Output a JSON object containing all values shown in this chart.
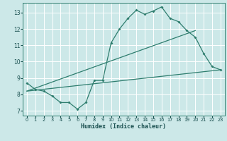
{
  "xlabel": "Humidex (Indice chaleur)",
  "bg_color": "#cce8e8",
  "grid_color": "#ffffff",
  "line_color": "#2e7d6e",
  "xlim": [
    -0.5,
    23.5
  ],
  "ylim": [
    6.7,
    13.6
  ],
  "xticks": [
    0,
    1,
    2,
    3,
    4,
    5,
    6,
    7,
    8,
    9,
    10,
    11,
    12,
    13,
    14,
    15,
    16,
    17,
    18,
    19,
    20,
    21,
    22,
    23
  ],
  "yticks": [
    7,
    8,
    9,
    10,
    11,
    12,
    13
  ],
  "line1_x": [
    0,
    1,
    2,
    3,
    4,
    5,
    6,
    7,
    8,
    9,
    10,
    11,
    12,
    13,
    14,
    15,
    16,
    17,
    18,
    19,
    20,
    21,
    22,
    23
  ],
  "line1_y": [
    8.7,
    8.3,
    8.2,
    7.9,
    7.5,
    7.5,
    7.1,
    7.5,
    8.85,
    8.85,
    11.15,
    12.0,
    12.65,
    13.15,
    12.9,
    13.1,
    13.35,
    12.65,
    12.45,
    11.9,
    11.5,
    10.5,
    9.7,
    9.5
  ],
  "line2_x": [
    0,
    23
  ],
  "line2_y": [
    8.2,
    9.5
  ],
  "line3_x": [
    0,
    20
  ],
  "line3_y": [
    8.2,
    11.9
  ]
}
